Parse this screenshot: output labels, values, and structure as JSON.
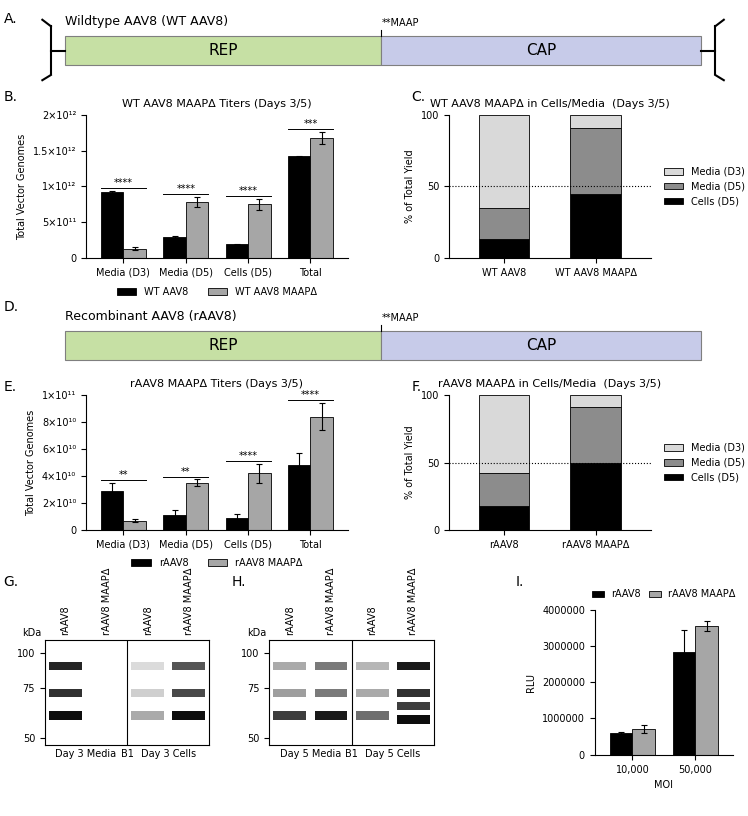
{
  "chart_data": [
    {
      "type": "diagram",
      "panel": "A.",
      "title": "Wildtype AAV8 (WT AAV8)",
      "marker": "hairpin",
      "marker_label": "**MAAP",
      "segments": [
        {
          "label": "REP",
          "color": "#c6e0a4"
        },
        {
          "label": "CAP",
          "color": "#c7cbe9"
        }
      ]
    },
    {
      "type": "bar",
      "panel": "B.",
      "title": "WT AAV8 MAAPΔ Titers (Days 3/5)",
      "ylabel": "Total Vector Genomes",
      "categories": [
        "Media (D3)",
        "Media (D5)",
        "Cells (D5)",
        "Total"
      ],
      "series": [
        {
          "name": "WT AAV8",
          "color": "#000000",
          "values": [
            920000000000,
            290000000000,
            190000000000,
            1420000000000
          ],
          "errors": [
            20000000000,
            15000000000,
            10000000000,
            10000000000
          ]
        },
        {
          "name": "WT AAV8 MAAPΔ",
          "color": "#a6a6a6",
          "values": [
            130000000000,
            780000000000,
            750000000000,
            1680000000000
          ],
          "errors": [
            20000000000,
            70000000000,
            80000000000,
            80000000000
          ]
        }
      ],
      "significance": [
        "****",
        "****",
        "****",
        "***"
      ],
      "ylim": [
        0,
        2000000000000
      ],
      "yticks": [
        0,
        {
          "value": 500000000000,
          "label": "5×10¹¹"
        },
        {
          "value": 1000000000000,
          "label": "1×10¹²"
        },
        {
          "value": 1500000000000,
          "label": "1.5×10¹²"
        },
        {
          "value": 2000000000000,
          "label": "2×10¹²"
        }
      ],
      "legend": "bottom"
    },
    {
      "type": "bar",
      "stacked": true,
      "panel": "C.",
      "title": "WT AAV8 MAAPΔ in Cells/Media  (Days 3/5)",
      "ylabel": "% of Total Yield",
      "categories": [
        "WT AAV8",
        "WT AAV8 MAAPΔ"
      ],
      "series": [
        {
          "name": "Cells (D5)",
          "color": "#000000",
          "values": [
            13,
            45
          ]
        },
        {
          "name": "Media (D5)",
          "color": "#8c8c8c",
          "values": [
            22,
            46
          ]
        },
        {
          "name": "Media (D3)",
          "color": "#d9d9d9",
          "values": [
            65,
            9
          ]
        }
      ],
      "reference_line": 50,
      "ylim": [
        0,
        100
      ],
      "yticks": [
        0,
        50,
        100
      ],
      "legend": "right"
    },
    {
      "type": "diagram",
      "panel": "D.",
      "title": "Recombinant AAV8 (rAAV8)",
      "marker_label": "**MAAP",
      "segments": [
        {
          "label": "REP",
          "color": "#c6e0a4"
        },
        {
          "label": "CAP",
          "color": "#c7cbe9"
        }
      ]
    },
    {
      "type": "bar",
      "panel": "E.",
      "title": "rAAV8 MAAPΔ Titers (Days 3/5)",
      "ylabel": "Total Vector Genomes",
      "categories": [
        "Media (D3)",
        "Media (D5)",
        "Cells (D5)",
        "Total"
      ],
      "series": [
        {
          "name": "rAAV8",
          "color": "#000000",
          "values": [
            29000000000,
            11000000000,
            9000000000,
            48000000000
          ],
          "errors": [
            6000000000,
            4000000000,
            2500000000,
            9000000000
          ]
        },
        {
          "name": "rAAV8 MAAPΔ",
          "color": "#a6a6a6",
          "values": [
            7000000000,
            35000000000,
            42000000000,
            84000000000
          ],
          "errors": [
            1000000000,
            2500000000,
            7000000000,
            10000000000
          ]
        }
      ],
      "significance": [
        "**",
        "**",
        "****",
        "****"
      ],
      "ylim": [
        0,
        100000000000
      ],
      "yticks": [
        0,
        {
          "value": 20000000000,
          "label": "2×10¹⁰"
        },
        {
          "value": 40000000000,
          "label": "4×10¹⁰"
        },
        {
          "value": 60000000000,
          "label": "6×10¹⁰"
        },
        {
          "value": 80000000000,
          "label": "8×10¹⁰"
        },
        {
          "value": 100000000000,
          "label": "1×10¹¹"
        }
      ],
      "legend": "bottom"
    },
    {
      "type": "bar",
      "stacked": true,
      "panel": "F.",
      "title": "rAAV8 MAAPΔ in Cells/Media  (Days 3/5)",
      "ylabel": "% of Total Yield",
      "categories": [
        "rAAV8",
        "rAAV8 MAAPΔ"
      ],
      "series": [
        {
          "name": "Cells (D5)",
          "color": "#000000",
          "values": [
            18,
            50
          ]
        },
        {
          "name": "Media (D5)",
          "color": "#8c8c8c",
          "values": [
            24,
            41
          ]
        },
        {
          "name": "Media (D3)",
          "color": "#d9d9d9",
          "values": [
            58,
            9
          ]
        }
      ],
      "reference_line": 50,
      "ylim": [
        0,
        100
      ],
      "yticks": [
        0,
        50,
        100
      ],
      "legend": "right"
    },
    {
      "type": "blot",
      "panel": "G.",
      "ylabel": "kDa",
      "log": "y",
      "ylim": [
        47,
        112
      ],
      "yticks": [
        50,
        75,
        100
      ],
      "lanes": [
        {
          "label": "rAAV8",
          "bands": [
            {
              "kDa": 90,
              "intensity": 0.9
            },
            {
              "kDa": 72,
              "intensity": 0.85
            },
            {
              "kDa": 60,
              "intensity": 1.0
            }
          ]
        },
        {
          "label": "rAAV8 MAAPΔ",
          "bands": []
        },
        {
          "label": "rAAV8",
          "bands": [
            {
              "kDa": 90,
              "intensity": 0.15
            },
            {
              "kDa": 72,
              "intensity": 0.2
            },
            {
              "kDa": 60,
              "intensity": 0.35
            }
          ]
        },
        {
          "label": "rAAV8 MAAPΔ",
          "bands": [
            {
              "kDa": 90,
              "intensity": 0.7
            },
            {
              "kDa": 72,
              "intensity": 0.75
            },
            {
              "kDa": 60,
              "intensity": 1.0
            }
          ]
        }
      ],
      "groups": [
        "Day 3 Media",
        "Day 3 Cells"
      ],
      "separator_label": "B1"
    },
    {
      "type": "blot",
      "panel": "H.",
      "ylabel": "kDa",
      "log": "y",
      "ylim": [
        47,
        112
      ],
      "yticks": [
        50,
        75,
        100
      ],
      "lanes": [
        {
          "label": "rAAV8",
          "bands": [
            {
              "kDa": 90,
              "intensity": 0.35
            },
            {
              "kDa": 72,
              "intensity": 0.4
            },
            {
              "kDa": 60,
              "intensity": 0.8
            }
          ]
        },
        {
          "label": "rAAV8 MAAPΔ",
          "bands": [
            {
              "kDa": 90,
              "intensity": 0.55
            },
            {
              "kDa": 72,
              "intensity": 0.55
            },
            {
              "kDa": 60,
              "intensity": 0.95
            }
          ]
        },
        {
          "label": "rAAV8",
          "bands": [
            {
              "kDa": 90,
              "intensity": 0.3
            },
            {
              "kDa": 72,
              "intensity": 0.35
            },
            {
              "kDa": 60,
              "intensity": 0.6
            }
          ]
        },
        {
          "label": "rAAV8 MAAPΔ",
          "bands": [
            {
              "kDa": 90,
              "intensity": 0.95
            },
            {
              "kDa": 72,
              "intensity": 0.85
            },
            {
              "kDa": 65,
              "intensity": 0.8
            },
            {
              "kDa": 58,
              "intensity": 1.0
            }
          ]
        }
      ],
      "groups": [
        "Day 5 Media",
        "Day 5 Cells"
      ],
      "separator_label": "B1"
    },
    {
      "type": "bar",
      "panel": "I.",
      "ylabel": "RLU",
      "xlabel": "MOI",
      "categories": [
        "10,000",
        "50,000"
      ],
      "series": [
        {
          "name": "rAAV8",
          "color": "#000000",
          "values": [
            590000,
            2820000
          ],
          "errors": [
            50000,
            620000
          ]
        },
        {
          "name": "rAAV8 MAAPΔ",
          "color": "#a6a6a6",
          "values": [
            710000,
            3550000
          ],
          "errors": [
            110000,
            130000
          ]
        }
      ],
      "ylim": [
        0,
        4000000
      ],
      "yticks": [
        0,
        1000000,
        2000000,
        3000000,
        4000000
      ],
      "legend": "top"
    }
  ]
}
